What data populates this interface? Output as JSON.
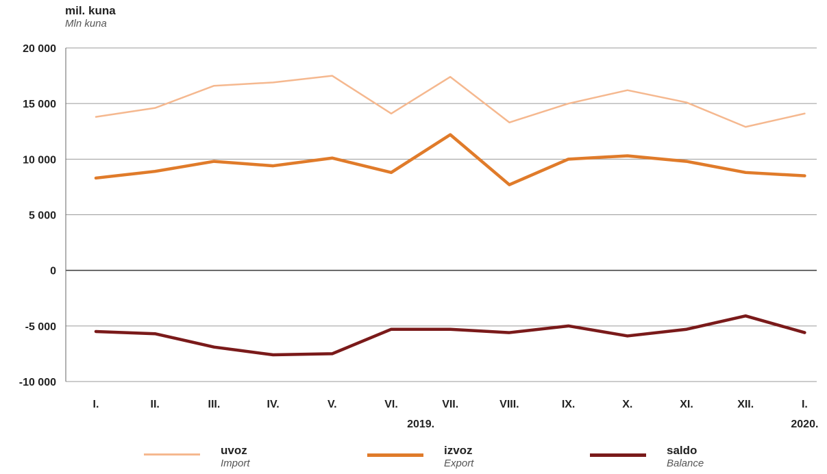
{
  "header": {
    "unit_hr": "mil. kuna",
    "unit_en": "Mln kuna"
  },
  "legend": [
    {
      "label_hr": "uvoz",
      "label_en": "Import",
      "color": "#f5b88f"
    },
    {
      "label_hr": "izvoz",
      "label_en": "Export",
      "color": "#e07b2a"
    },
    {
      "label_hr": "saldo",
      "label_en": "Balance",
      "color": "#7a1a1a"
    }
  ],
  "chart_data": {
    "type": "line",
    "categories": [
      "I.",
      "II.",
      "III.",
      "IV.",
      "V.",
      "VI.",
      "VII.",
      "VIII.",
      "IX.",
      "X.",
      "XI.",
      "XII.",
      "I."
    ],
    "year_labels": [
      {
        "index": 5.5,
        "label": "2019."
      },
      {
        "index": 12,
        "label": "2020."
      }
    ],
    "yticks": [
      20000,
      15000,
      10000,
      5000,
      0,
      -5000,
      -10000
    ],
    "ytick_labels": [
      "20 000",
      "15 000",
      "10 000",
      "5 000",
      "0",
      "-5 000",
      "-10 000"
    ],
    "ylim": [
      -10000,
      20000
    ],
    "grid": true,
    "series": [
      {
        "name": "uvoz",
        "color": "#f5b88f",
        "values": [
          13800,
          14600,
          16600,
          16900,
          17500,
          14100,
          17400,
          13300,
          15000,
          16200,
          15100,
          12900,
          14100
        ]
      },
      {
        "name": "izvoz",
        "color": "#e07b2a",
        "values": [
          8300,
          8900,
          9800,
          9400,
          10100,
          8800,
          12200,
          7700,
          10000,
          10300,
          9800,
          8800,
          8500
        ]
      },
      {
        "name": "saldo",
        "color": "#7a1a1a",
        "values": [
          -5500,
          -5700,
          -6900,
          -7600,
          -7500,
          -5300,
          -5300,
          -5600,
          -5000,
          -5900,
          -5300,
          -4100,
          -5600
        ]
      }
    ]
  }
}
